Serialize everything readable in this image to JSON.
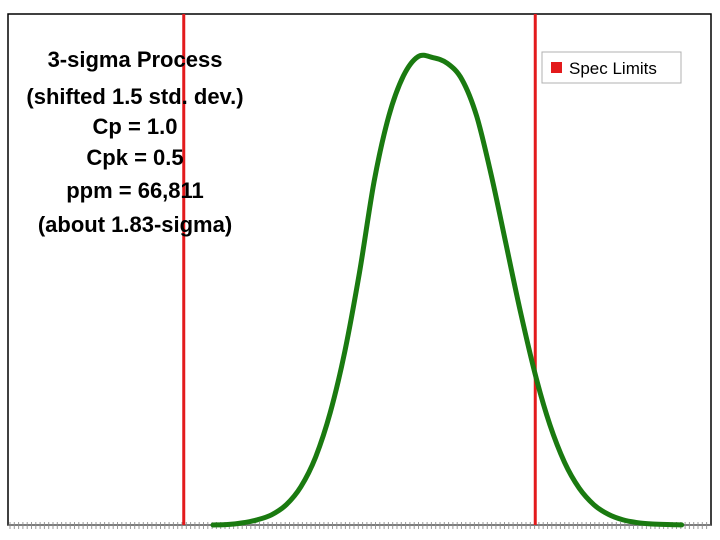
{
  "chart_data": {
    "type": "line",
    "title": "",
    "xlabel": "",
    "ylabel": "",
    "xlim": [
      -6,
      6
    ],
    "ylim": [
      0,
      0.44
    ],
    "grid": false,
    "legend_position": "top-right",
    "annotations": [
      "3-sigma Process",
      "(shifted 1.5 std. dev.)",
      "Cp = 1.0",
      "Cpk = 0.5",
      "ppm = 66,811",
      "(about 1.83-sigma)"
    ],
    "spec_limits": {
      "name": "Spec Limits",
      "values": [
        -3,
        3
      ],
      "color": "#e31a1c"
    },
    "series": [
      {
        "color": "#1a7a10",
        "x": [
          -2.5,
          -2.25,
          -2,
          -1.75,
          -1.5,
          -1.25,
          -1,
          -0.75,
          -0.5,
          -0.25,
          0,
          0.25,
          0.5,
          0.75,
          1,
          1.25,
          1.5,
          1.75,
          2,
          2.25,
          2.5,
          2.75,
          3,
          3.25,
          3.5,
          3.75,
          4,
          4.25,
          4.5,
          4.75,
          5,
          5.25,
          5.5
        ],
        "y": [
          0,
          0.0004,
          0.0018,
          0.0044,
          0.0088,
          0.0175,
          0.033,
          0.0584,
          0.0967,
          0.1497,
          0.2175,
          0.2958,
          0.3521,
          0.3867,
          0.4033,
          0.4025,
          0.3975,
          0.3835,
          0.352,
          0.3011,
          0.242,
          0.183,
          0.1295,
          0.0863,
          0.054,
          0.0317,
          0.0175,
          0.0091,
          0.0044,
          0.002,
          0.0009,
          0.0004,
          0.0001
        ]
      }
    ]
  }
}
